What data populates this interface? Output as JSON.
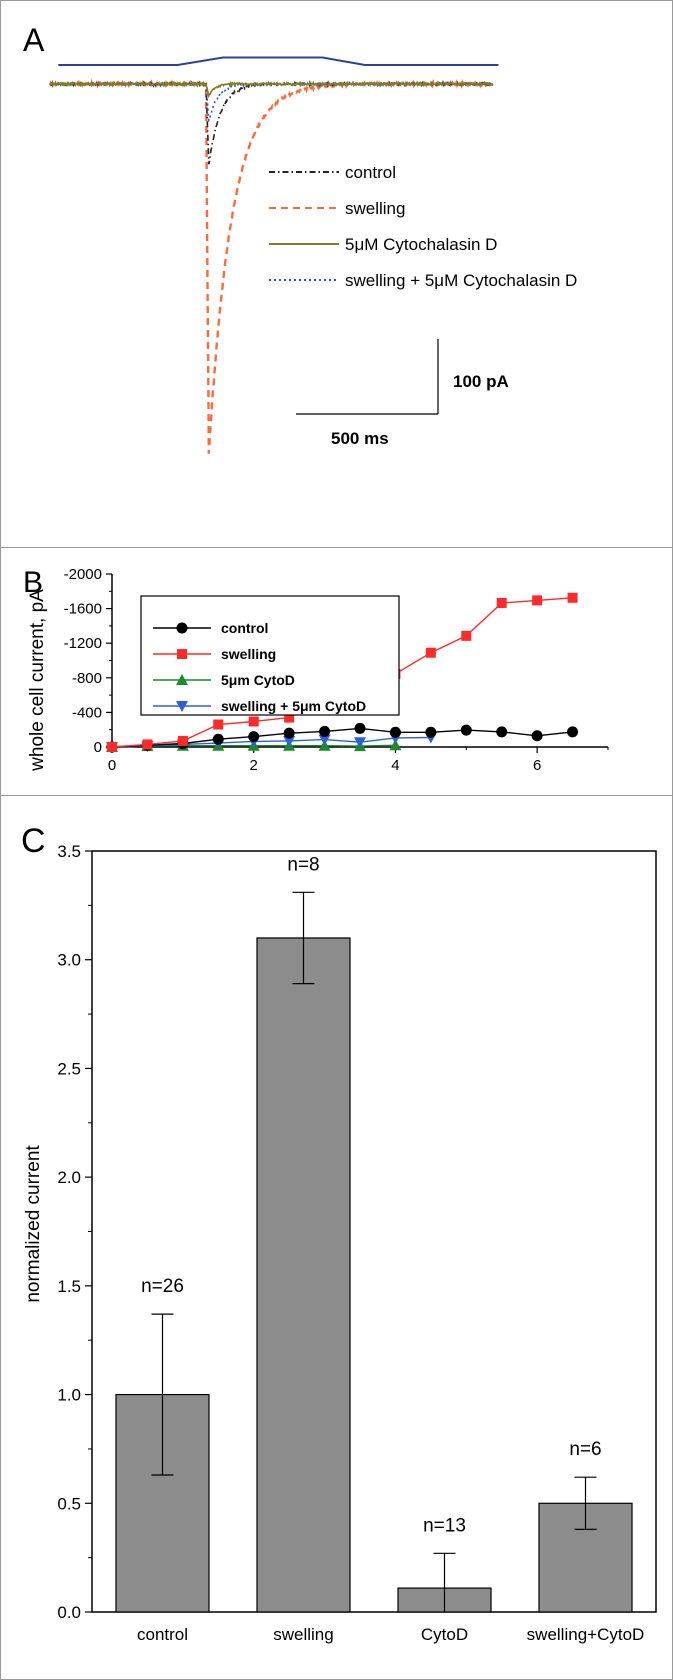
{
  "chart_data": [
    {
      "panel": "A",
      "type": "line",
      "legend": [
        "control",
        "swelling",
        "5μM Cytochalasin D",
        "swelling + 5μM Cytochalasin D"
      ],
      "scale_bar": {
        "y_label": "100 pA",
        "x_label": "500 ms",
        "y_value_pA": 100,
        "x_value_ms": 500
      },
      "stimulus": {
        "baseline": 0,
        "plateau": 1,
        "ramp_up_ms": [
          0,
          160
        ],
        "plateau_ms": [
          160,
          510
        ],
        "ramp_down_ms": [
          510,
          660
        ]
      },
      "series": [
        {
          "name": "control",
          "color": "#222222",
          "dash": "dashdot",
          "peak_pA": -108,
          "peak_time_ms": 10,
          "decay_tau_ms": 40
        },
        {
          "name": "swelling",
          "color": "#ff6b3d",
          "dash": "dash",
          "peak_pA": -492,
          "peak_time_ms": 10,
          "decay_tau_ms": 80
        },
        {
          "name": "5μM Cytochalasin D",
          "color": "#7f7f2a",
          "dash": "solid",
          "peak_pA": -16,
          "peak_time_ms": 10,
          "decay_tau_ms": 20
        },
        {
          "name": "swelling + 5μM Cytochalasin D",
          "color": "#2b4fd8",
          "dash": "dot",
          "peak_pA": -50,
          "peak_time_ms": 10,
          "decay_tau_ms": 30
        }
      ]
    },
    {
      "panel": "B",
      "type": "line",
      "ylabel": "whole cell current, pA",
      "xlabel": "",
      "xlim": [
        0,
        7
      ],
      "ylim": [
        0,
        -2000
      ],
      "xticks": [
        "0",
        "2",
        "4",
        "6"
      ],
      "yticks": [
        "0",
        "-400",
        "-800",
        "-1200",
        "-1600",
        "-2000"
      ],
      "legend_position": "top-left",
      "series": [
        {
          "name": "control",
          "color": "#000000",
          "marker": "circle",
          "x": [
            0,
            0.5,
            1,
            1.5,
            2,
            2.5,
            3,
            3.5,
            4,
            4.5,
            5,
            5.5,
            6,
            6.5
          ],
          "y": [
            0,
            -20,
            -40,
            -90,
            -120,
            -160,
            -180,
            -215,
            -170,
            -170,
            -195,
            -175,
            -130,
            -175
          ]
        },
        {
          "name": "swelling",
          "color": "#ff2a2a",
          "marker": "square",
          "x": [
            0,
            0.5,
            1,
            1.5,
            2,
            2.5,
            3,
            3.5,
            4,
            4.5,
            5,
            5.5,
            6,
            6.5
          ],
          "y": [
            0,
            -30,
            -70,
            -260,
            -295,
            -340,
            -560,
            -705,
            -845,
            -1090,
            -1285,
            -1665,
            -1695,
            -1725
          ]
        },
        {
          "name": "5μm CytoD",
          "color": "#1a8a2a",
          "marker": "triangle-up",
          "x": [
            0,
            0.5,
            1,
            1.5,
            2,
            2.5,
            3,
            3.5,
            4
          ],
          "y": [
            0,
            -10,
            -15,
            -15,
            -15,
            -15,
            -15,
            -10,
            -20
          ]
        },
        {
          "name": "swelling + 5μm CytoD",
          "color": "#2f5fd8",
          "marker": "triangle-down",
          "x": [
            0,
            0.5,
            1,
            1.5,
            2,
            2.5,
            3,
            3.5,
            4,
            4.5
          ],
          "y": [
            0,
            -10,
            -30,
            -45,
            -65,
            -70,
            -85,
            -55,
            -105,
            -110
          ]
        }
      ]
    },
    {
      "panel": "C",
      "type": "bar",
      "ylabel": "normalized current",
      "xlabel": "",
      "ylim": [
        0,
        3.5
      ],
      "yticks": [
        "0.0",
        "0.5",
        "1.0",
        "1.5",
        "2.0",
        "2.5",
        "3.0",
        "3.5"
      ],
      "categories": [
        "control",
        "swelling",
        "CytoD",
        "swelling+CytoD"
      ],
      "values": [
        1.0,
        3.1,
        0.11,
        0.5
      ],
      "errors": [
        0.37,
        0.21,
        0.16,
        0.12
      ],
      "bar_labels": [
        "n=26",
        "n=8",
        "n=13",
        "n=6"
      ],
      "bar_color": "#8c8c8c"
    }
  ],
  "panel_labels": {
    "a": "A",
    "b": "B",
    "c": "C"
  }
}
